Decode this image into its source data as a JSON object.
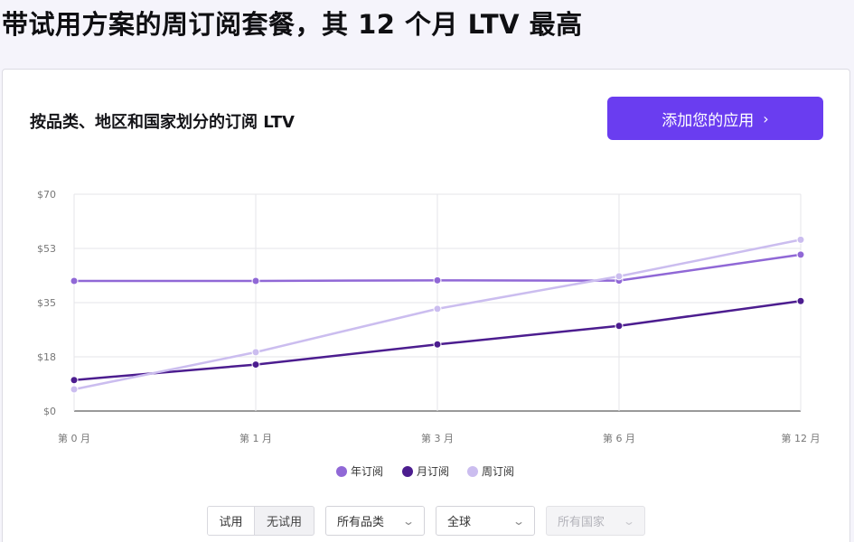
{
  "page": {
    "title": "带试用方案的周订阅套餐，其 12 个月 LTV 最高"
  },
  "card": {
    "title": "按品类、地区和国家划分的订阅 LTV",
    "cta_label": "添加您的应用",
    "cta_chevron": "›"
  },
  "chart_data": {
    "type": "line",
    "title": "按品类、地区和国家划分的订阅 LTV",
    "categories": [
      "第 0 月",
      "第 1 月",
      "第 3 月",
      "第 6 月",
      "第 12 月"
    ],
    "y_ticks": [
      "$0",
      "$18",
      "$35",
      "$53",
      "$70"
    ],
    "y_tick_values": [
      0,
      17.5,
      35,
      52.5,
      70
    ],
    "ylim": [
      0,
      70
    ],
    "grid": true,
    "legend_position": "bottom",
    "series": [
      {
        "name": "年订阅",
        "color": "#9068d6",
        "values": [
          42,
          42,
          42.2,
          42.1,
          50.5
        ]
      },
      {
        "name": "月订阅",
        "color": "#4c1d8f",
        "values": [
          10,
          15,
          21.5,
          27.5,
          35.5
        ]
      },
      {
        "name": "周订阅",
        "color": "#cbbdef",
        "values": [
          7,
          19,
          33,
          43.5,
          55.3
        ]
      }
    ]
  },
  "controls": {
    "trial_toggle": {
      "options": [
        "试用",
        "无试用"
      ],
      "selected": "试用"
    },
    "category_select": {
      "value": "所有品类"
    },
    "region_select": {
      "value": "全球"
    },
    "country_select": {
      "value": "所有国家",
      "disabled": true
    }
  }
}
